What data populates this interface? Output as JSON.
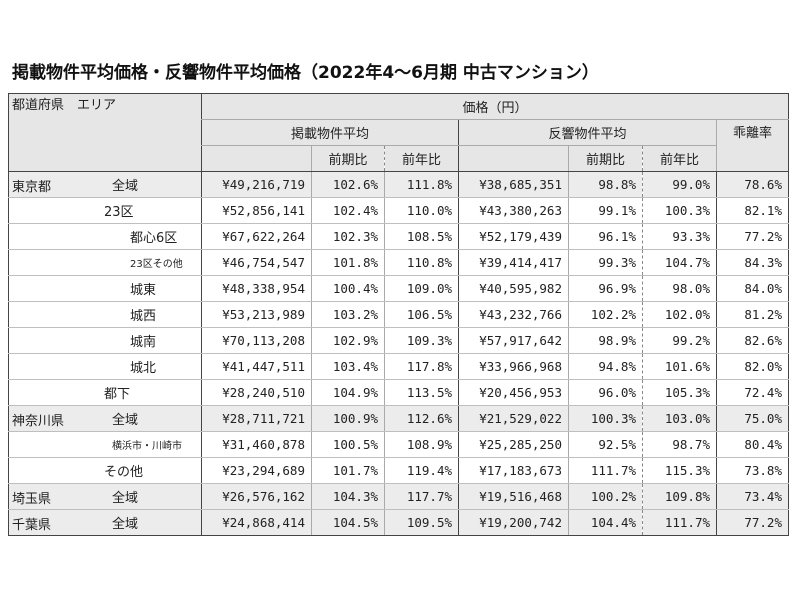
{
  "title": "掲載物件平均価格・反響物件平均価格（2022年4～6月期 中古マンション）",
  "header": {
    "pref_area": "都道府県　エリア",
    "kakaku": "価格（円）",
    "keisai": "掲載物件平均",
    "hankyo": "反響物件平均",
    "kairi": "乖離率",
    "zenki": "前期比",
    "zennen": "前年比"
  },
  "rows": [
    {
      "pref": "東京都",
      "area": "全域",
      "keisai": "¥49,216,719",
      "k_zenki": "102.6%",
      "k_zennen": "111.8%",
      "hankyo": "¥38,685,351",
      "h_zenki": "98.8%",
      "h_zennen": "99.0%",
      "kairi": "78.6%"
    },
    {
      "pref": "",
      "area": "23区",
      "keisai": "¥52,856,141",
      "k_zenki": "102.4%",
      "k_zennen": "110.0%",
      "hankyo": "¥43,380,263",
      "h_zenki": "99.1%",
      "h_zennen": "100.3%",
      "kairi": "82.1%"
    },
    {
      "pref": "",
      "area": "都心6区",
      "keisai": "¥67,622,264",
      "k_zenki": "102.3%",
      "k_zennen": "108.5%",
      "hankyo": "¥52,179,439",
      "h_zenki": "96.1%",
      "h_zennen": "93.3%",
      "kairi": "77.2%"
    },
    {
      "pref": "",
      "area": "23区その他",
      "keisai": "¥46,754,547",
      "k_zenki": "101.8%",
      "k_zennen": "110.8%",
      "hankyo": "¥39,414,417",
      "h_zenki": "99.3%",
      "h_zennen": "104.7%",
      "kairi": "84.3%"
    },
    {
      "pref": "",
      "area": "城東",
      "keisai": "¥48,338,954",
      "k_zenki": "100.4%",
      "k_zennen": "109.0%",
      "hankyo": "¥40,595,982",
      "h_zenki": "96.9%",
      "h_zennen": "98.0%",
      "kairi": "84.0%"
    },
    {
      "pref": "",
      "area": "城西",
      "keisai": "¥53,213,989",
      "k_zenki": "103.2%",
      "k_zennen": "106.5%",
      "hankyo": "¥43,232,766",
      "h_zenki": "102.2%",
      "h_zennen": "102.0%",
      "kairi": "81.2%"
    },
    {
      "pref": "",
      "area": "城南",
      "keisai": "¥70,113,208",
      "k_zenki": "102.9%",
      "k_zennen": "109.3%",
      "hankyo": "¥57,917,642",
      "h_zenki": "98.9%",
      "h_zennen": "99.2%",
      "kairi": "82.6%"
    },
    {
      "pref": "",
      "area": "城北",
      "keisai": "¥41,447,511",
      "k_zenki": "103.4%",
      "k_zennen": "117.8%",
      "hankyo": "¥33,966,968",
      "h_zenki": "94.8%",
      "h_zennen": "101.6%",
      "kairi": "82.0%"
    },
    {
      "pref": "",
      "area": "都下",
      "keisai": "¥28,240,510",
      "k_zenki": "104.9%",
      "k_zennen": "113.5%",
      "hankyo": "¥20,456,953",
      "h_zenki": "96.0%",
      "h_zennen": "105.3%",
      "kairi": "72.4%"
    },
    {
      "pref": "神奈川県",
      "area": "全域",
      "keisai": "¥28,711,721",
      "k_zenki": "100.9%",
      "k_zennen": "112.6%",
      "hankyo": "¥21,529,022",
      "h_zenki": "100.3%",
      "h_zennen": "103.0%",
      "kairi": "75.0%"
    },
    {
      "pref": "",
      "area": "横浜市・川崎市",
      "keisai": "¥31,460,878",
      "k_zenki": "100.5%",
      "k_zennen": "108.9%",
      "hankyo": "¥25,285,250",
      "h_zenki": "92.5%",
      "h_zennen": "98.7%",
      "kairi": "80.4%"
    },
    {
      "pref": "",
      "area": "その他",
      "keisai": "¥23,294,689",
      "k_zenki": "101.7%",
      "k_zennen": "119.4%",
      "hankyo": "¥17,183,673",
      "h_zenki": "111.7%",
      "h_zennen": "115.3%",
      "kairi": "73.8%"
    },
    {
      "pref": "埼玉県",
      "area": "全域",
      "keisai": "¥26,576,162",
      "k_zenki": "104.3%",
      "k_zennen": "117.7%",
      "hankyo": "¥19,516,468",
      "h_zenki": "100.2%",
      "h_zennen": "109.8%",
      "kairi": "73.4%"
    },
    {
      "pref": "千葉県",
      "area": "全域",
      "keisai": "¥24,868,414",
      "k_zenki": "104.5%",
      "k_zennen": "109.5%",
      "hankyo": "¥19,200,742",
      "h_zenki": "104.4%",
      "h_zennen": "111.7%",
      "kairi": "77.2%"
    }
  ]
}
